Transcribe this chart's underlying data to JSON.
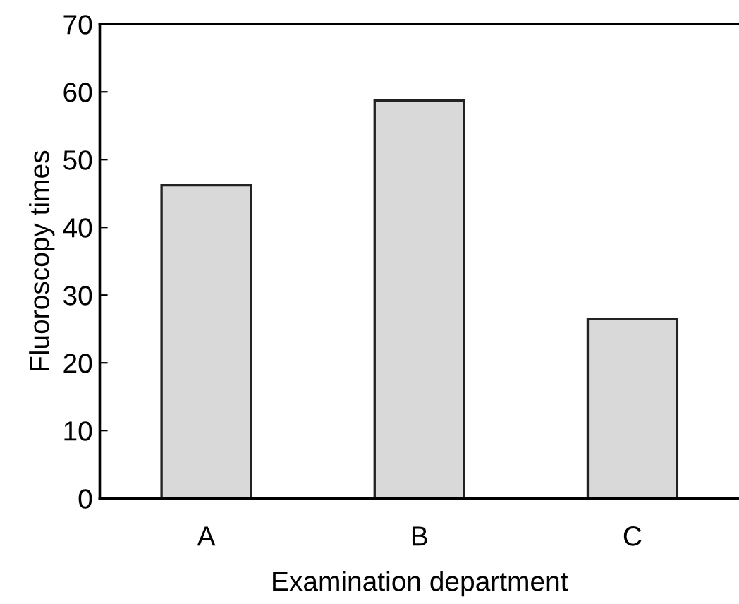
{
  "chart_data": {
    "type": "bar",
    "xlabel": "Examination department",
    "ylabel": "Fluoroscopy times",
    "categories": [
      "A",
      "B",
      "C"
    ],
    "values": [
      46.2,
      58.7,
      26.5
    ],
    "color": "#d9d9d9",
    "ylim": [
      0,
      70
    ],
    "yticks": [
      0,
      10,
      20,
      30,
      40,
      50,
      60,
      70
    ],
    "grid": false
  }
}
